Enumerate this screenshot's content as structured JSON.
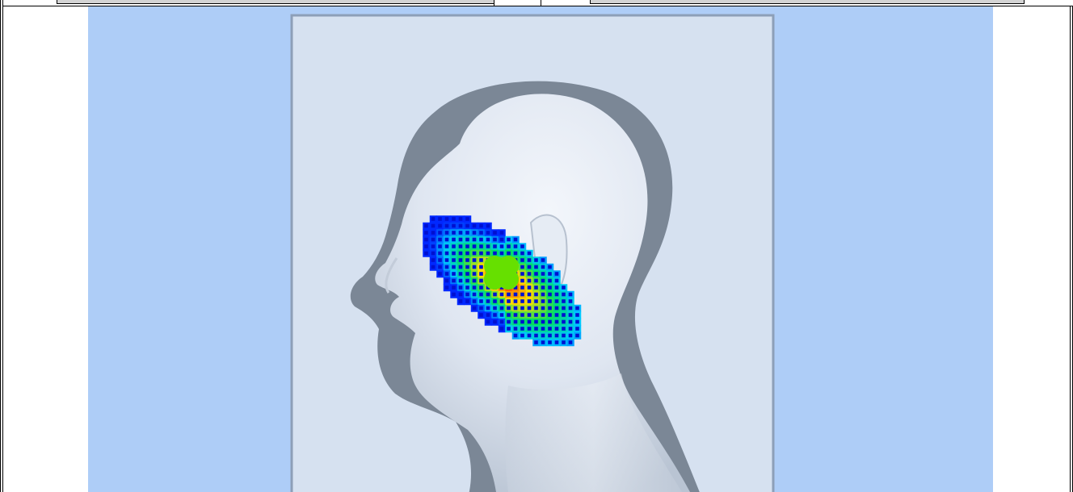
{
  "window": {
    "toolbar": {
      "left_field_value": "",
      "right_field_value": ""
    }
  },
  "viewport": {
    "background_color": "#aecdf7",
    "panel_color": "#d6e1f0",
    "panel_border_color": "#8d9fb8",
    "silhouette_color": "#7b8796",
    "skin_color": "#dde5f0",
    "model": "head-profile-left-facing",
    "overlay": {
      "type": "field-grid-heatmap",
      "palette": [
        "#0000ff",
        "#00c8ff",
        "#00e060",
        "#ffe000",
        "#ff4000"
      ],
      "center_marker_color": "#66e000"
    }
  }
}
